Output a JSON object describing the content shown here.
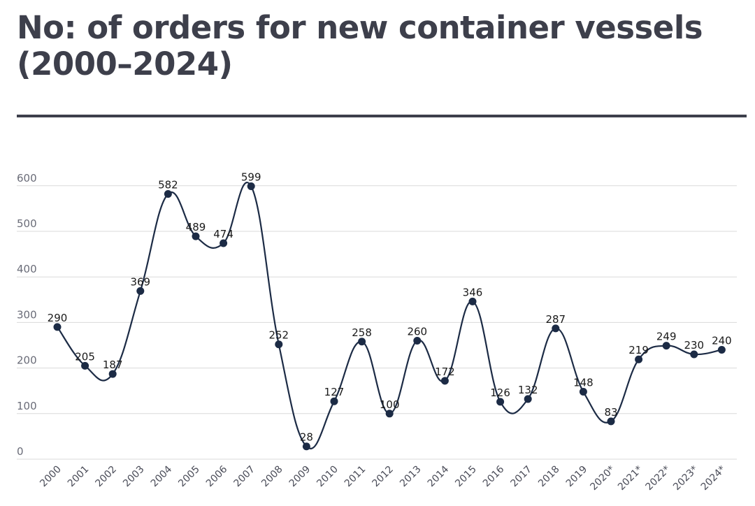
{
  "title": "No: of orders for new container vessels (2000–2024)",
  "colors": {
    "line": "#1c2b45",
    "marker": "#1c2b45",
    "grid": "#d9d9d9",
    "title": "#3d3f4b"
  },
  "chart_data": {
    "type": "line",
    "title": "No: of orders for new container vessels (2000–2024)",
    "xlabel": "",
    "ylabel": "",
    "ylim": [
      0,
      600
    ],
    "yticks": [
      0,
      100,
      200,
      300,
      400,
      500,
      600
    ],
    "grid": true,
    "smooth": true,
    "show_data_labels": true,
    "categories": [
      "2000",
      "2001",
      "2002",
      "2003",
      "2004",
      "2005",
      "2006",
      "2007",
      "2008",
      "2009",
      "2010",
      "2011",
      "2012",
      "2013",
      "2014",
      "2015",
      "2016",
      "2017",
      "2018",
      "2019",
      "2020*",
      "2021*",
      "2022*",
      "2023*",
      "2024*"
    ],
    "series": [
      {
        "values": [
          290,
          205,
          187,
          369,
          582,
          489,
          474,
          599,
          252,
          28,
          127,
          258,
          100,
          260,
          172,
          346,
          126,
          132,
          287,
          148,
          83,
          219,
          249,
          230,
          240
        ]
      }
    ]
  }
}
